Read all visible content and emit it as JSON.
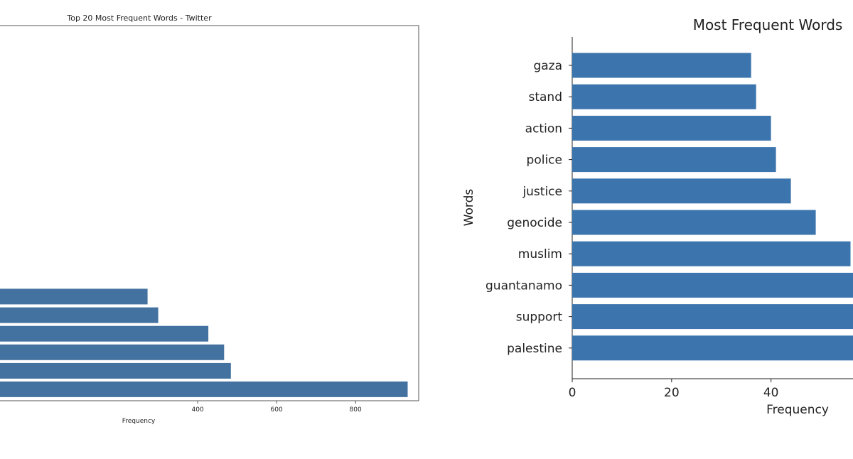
{
  "chart_data": [
    {
      "type": "bar",
      "orientation": "horizontal",
      "title": "Top 20 Most Frequent Words - Twitter",
      "xlabel": "Frequency",
      "ylabel": "",
      "xticks": [
        400,
        600,
        800
      ],
      "values": [
        273,
        300,
        427,
        467,
        484,
        932
      ],
      "xlim": [
        -110,
        960
      ],
      "grid": false,
      "bar_color": "#4472a0"
    },
    {
      "type": "bar",
      "orientation": "horizontal",
      "title": "Most Frequent Words",
      "xlabel": "Frequency",
      "ylabel": "Words",
      "categories": [
        "gaza",
        "stand",
        "action",
        "police",
        "justice",
        "genocide",
        "muslim",
        "guantanamo",
        "support",
        "palestine"
      ],
      "values": [
        36,
        37,
        40,
        41,
        44,
        49,
        56,
        58,
        60,
        62
      ],
      "xticks": [
        0,
        20,
        40
      ],
      "xlim": [
        0,
        56.5
      ],
      "grid": false,
      "bar_color": "#3c75ae"
    }
  ]
}
